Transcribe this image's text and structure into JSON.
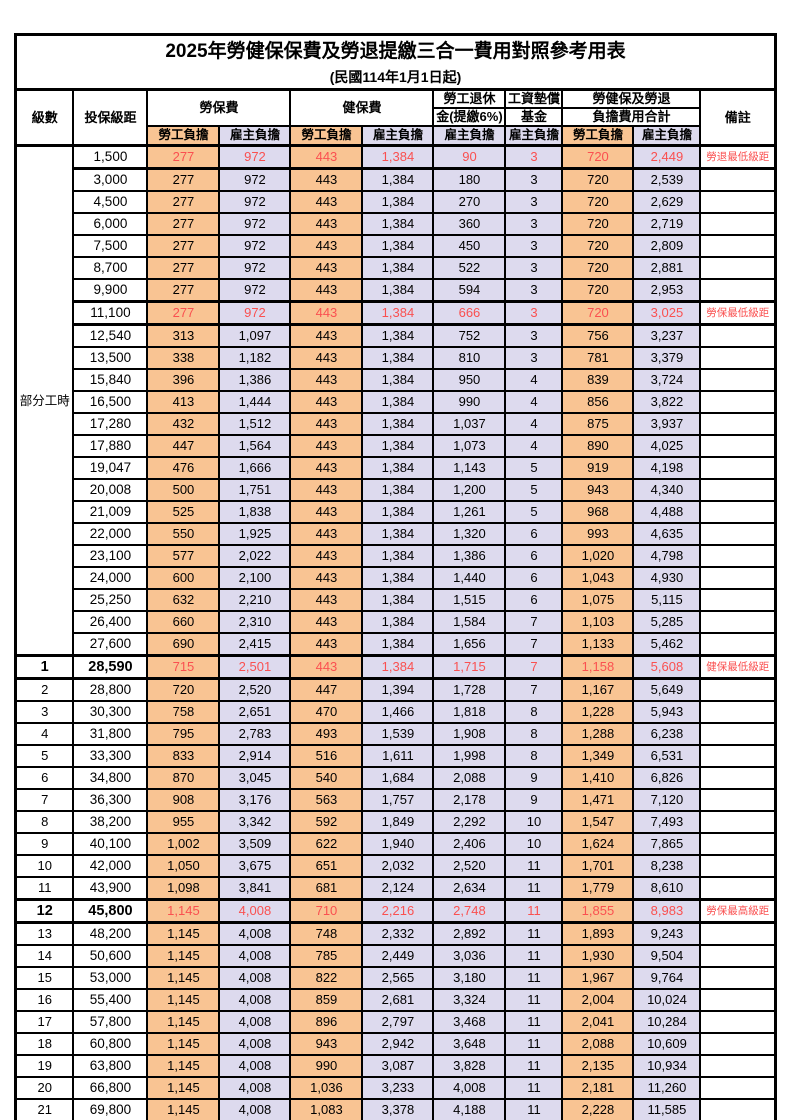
{
  "title": "2025年勞健保保費及勞退提繳三合一費用對照參考用表",
  "subtitle": "(民國114年1月1日起)",
  "colors": {
    "employee_cell_bg": "#F9C493",
    "employer_cell_bg": "#DDDAEE",
    "highlight_text": "#FA5050",
    "border": "#000000"
  },
  "header": {
    "level": "級數",
    "bracket": "投保級距",
    "labor_insurance": "勞保費",
    "health_insurance": "健保費",
    "pension_line1": "勞工退休",
    "pension_line2": "金(提繳6%)",
    "wage_fund_line1": "工資墊償",
    "wage_fund_line2": "基金",
    "total_line1": "勞健保及勞退",
    "total_line2": "負擔費用合計",
    "remark": "備註",
    "employee_burden": "勞工負擔",
    "employer_burden": "雇主負擔"
  },
  "part_time": {
    "label": "部分工時",
    "span": 23
  },
  "rows": [
    {
      "lv": "",
      "br": "1,500",
      "v": [
        "277",
        "972",
        "443",
        "1,384",
        "90",
        "3",
        "720",
        "2,449"
      ],
      "rm": "勞退最低級距",
      "hl": 1
    },
    {
      "lv": "",
      "br": "3,000",
      "v": [
        "277",
        "972",
        "443",
        "1,384",
        "180",
        "3",
        "720",
        "2,539"
      ],
      "rm": ""
    },
    {
      "lv": "",
      "br": "4,500",
      "v": [
        "277",
        "972",
        "443",
        "1,384",
        "270",
        "3",
        "720",
        "2,629"
      ],
      "rm": ""
    },
    {
      "lv": "",
      "br": "6,000",
      "v": [
        "277",
        "972",
        "443",
        "1,384",
        "360",
        "3",
        "720",
        "2,719"
      ],
      "rm": ""
    },
    {
      "lv": "",
      "br": "7,500",
      "v": [
        "277",
        "972",
        "443",
        "1,384",
        "450",
        "3",
        "720",
        "2,809"
      ],
      "rm": ""
    },
    {
      "lv": "",
      "br": "8,700",
      "v": [
        "277",
        "972",
        "443",
        "1,384",
        "522",
        "3",
        "720",
        "2,881"
      ],
      "rm": ""
    },
    {
      "lv": "",
      "br": "9,900",
      "v": [
        "277",
        "972",
        "443",
        "1,384",
        "594",
        "3",
        "720",
        "2,953"
      ],
      "rm": ""
    },
    {
      "lv": "",
      "br": "11,100",
      "v": [
        "277",
        "972",
        "443",
        "1,384",
        "666",
        "3",
        "720",
        "3,025"
      ],
      "rm": "勞保最低級距",
      "hl": 1
    },
    {
      "lv": "",
      "br": "12,540",
      "v": [
        "313",
        "1,097",
        "443",
        "1,384",
        "752",
        "3",
        "756",
        "3,237"
      ],
      "rm": ""
    },
    {
      "lv": "",
      "br": "13,500",
      "v": [
        "338",
        "1,182",
        "443",
        "1,384",
        "810",
        "3",
        "781",
        "3,379"
      ],
      "rm": ""
    },
    {
      "lv": "",
      "br": "15,840",
      "v": [
        "396",
        "1,386",
        "443",
        "1,384",
        "950",
        "4",
        "839",
        "3,724"
      ],
      "rm": ""
    },
    {
      "lv": "",
      "br": "16,500",
      "v": [
        "413",
        "1,444",
        "443",
        "1,384",
        "990",
        "4",
        "856",
        "3,822"
      ],
      "rm": ""
    },
    {
      "lv": "",
      "br": "17,280",
      "v": [
        "432",
        "1,512",
        "443",
        "1,384",
        "1,037",
        "4",
        "875",
        "3,937"
      ],
      "rm": ""
    },
    {
      "lv": "",
      "br": "17,880",
      "v": [
        "447",
        "1,564",
        "443",
        "1,384",
        "1,073",
        "4",
        "890",
        "4,025"
      ],
      "rm": ""
    },
    {
      "lv": "",
      "br": "19,047",
      "v": [
        "476",
        "1,666",
        "443",
        "1,384",
        "1,143",
        "5",
        "919",
        "4,198"
      ],
      "rm": ""
    },
    {
      "lv": "",
      "br": "20,008",
      "v": [
        "500",
        "1,751",
        "443",
        "1,384",
        "1,200",
        "5",
        "943",
        "4,340"
      ],
      "rm": ""
    },
    {
      "lv": "",
      "br": "21,009",
      "v": [
        "525",
        "1,838",
        "443",
        "1,384",
        "1,261",
        "5",
        "968",
        "4,488"
      ],
      "rm": ""
    },
    {
      "lv": "",
      "br": "22,000",
      "v": [
        "550",
        "1,925",
        "443",
        "1,384",
        "1,320",
        "6",
        "993",
        "4,635"
      ],
      "rm": ""
    },
    {
      "lv": "",
      "br": "23,100",
      "v": [
        "577",
        "2,022",
        "443",
        "1,384",
        "1,386",
        "6",
        "1,020",
        "4,798"
      ],
      "rm": ""
    },
    {
      "lv": "",
      "br": "24,000",
      "v": [
        "600",
        "2,100",
        "443",
        "1,384",
        "1,440",
        "6",
        "1,043",
        "4,930"
      ],
      "rm": ""
    },
    {
      "lv": "",
      "br": "25,250",
      "v": [
        "632",
        "2,210",
        "443",
        "1,384",
        "1,515",
        "6",
        "1,075",
        "5,115"
      ],
      "rm": ""
    },
    {
      "lv": "",
      "br": "26,400",
      "v": [
        "660",
        "2,310",
        "443",
        "1,384",
        "1,584",
        "7",
        "1,103",
        "5,285"
      ],
      "rm": ""
    },
    {
      "lv": "",
      "br": "27,600",
      "v": [
        "690",
        "2,415",
        "443",
        "1,384",
        "1,656",
        "7",
        "1,133",
        "5,462"
      ],
      "rm": ""
    },
    {
      "lv": "1",
      "br": "28,590",
      "v": [
        "715",
        "2,501",
        "443",
        "1,384",
        "1,715",
        "7",
        "1,158",
        "5,608"
      ],
      "rm": "健保最低級距",
      "hl": 1,
      "em": 1
    },
    {
      "lv": "2",
      "br": "28,800",
      "v": [
        "720",
        "2,520",
        "447",
        "1,394",
        "1,728",
        "7",
        "1,167",
        "5,649"
      ],
      "rm": ""
    },
    {
      "lv": "3",
      "br": "30,300",
      "v": [
        "758",
        "2,651",
        "470",
        "1,466",
        "1,818",
        "8",
        "1,228",
        "5,943"
      ],
      "rm": ""
    },
    {
      "lv": "4",
      "br": "31,800",
      "v": [
        "795",
        "2,783",
        "493",
        "1,539",
        "1,908",
        "8",
        "1,288",
        "6,238"
      ],
      "rm": ""
    },
    {
      "lv": "5",
      "br": "33,300",
      "v": [
        "833",
        "2,914",
        "516",
        "1,611",
        "1,998",
        "8",
        "1,349",
        "6,531"
      ],
      "rm": ""
    },
    {
      "lv": "6",
      "br": "34,800",
      "v": [
        "870",
        "3,045",
        "540",
        "1,684",
        "2,088",
        "9",
        "1,410",
        "6,826"
      ],
      "rm": ""
    },
    {
      "lv": "7",
      "br": "36,300",
      "v": [
        "908",
        "3,176",
        "563",
        "1,757",
        "2,178",
        "9",
        "1,471",
        "7,120"
      ],
      "rm": ""
    },
    {
      "lv": "8",
      "br": "38,200",
      "v": [
        "955",
        "3,342",
        "592",
        "1,849",
        "2,292",
        "10",
        "1,547",
        "7,493"
      ],
      "rm": ""
    },
    {
      "lv": "9",
      "br": "40,100",
      "v": [
        "1,002",
        "3,509",
        "622",
        "1,940",
        "2,406",
        "10",
        "1,624",
        "7,865"
      ],
      "rm": ""
    },
    {
      "lv": "10",
      "br": "42,000",
      "v": [
        "1,050",
        "3,675",
        "651",
        "2,032",
        "2,520",
        "11",
        "1,701",
        "8,238"
      ],
      "rm": ""
    },
    {
      "lv": "11",
      "br": "43,900",
      "v": [
        "1,098",
        "3,841",
        "681",
        "2,124",
        "2,634",
        "11",
        "1,779",
        "8,610"
      ],
      "rm": ""
    },
    {
      "lv": "12",
      "br": "45,800",
      "v": [
        "1,145",
        "4,008",
        "710",
        "2,216",
        "2,748",
        "11",
        "1,855",
        "8,983"
      ],
      "rm": "勞保最高級距",
      "hl": 1,
      "em": 1
    },
    {
      "lv": "13",
      "br": "48,200",
      "v": [
        "1,145",
        "4,008",
        "748",
        "2,332",
        "2,892",
        "11",
        "1,893",
        "9,243"
      ],
      "rm": ""
    },
    {
      "lv": "14",
      "br": "50,600",
      "v": [
        "1,145",
        "4,008",
        "785",
        "2,449",
        "3,036",
        "11",
        "1,930",
        "9,504"
      ],
      "rm": ""
    },
    {
      "lv": "15",
      "br": "53,000",
      "v": [
        "1,145",
        "4,008",
        "822",
        "2,565",
        "3,180",
        "11",
        "1,967",
        "9,764"
      ],
      "rm": ""
    },
    {
      "lv": "16",
      "br": "55,400",
      "v": [
        "1,145",
        "4,008",
        "859",
        "2,681",
        "3,324",
        "11",
        "2,004",
        "10,024"
      ],
      "rm": ""
    },
    {
      "lv": "17",
      "br": "57,800",
      "v": [
        "1,145",
        "4,008",
        "896",
        "2,797",
        "3,468",
        "11",
        "2,041",
        "10,284"
      ],
      "rm": ""
    },
    {
      "lv": "18",
      "br": "60,800",
      "v": [
        "1,145",
        "4,008",
        "943",
        "2,942",
        "3,648",
        "11",
        "2,088",
        "10,609"
      ],
      "rm": ""
    },
    {
      "lv": "19",
      "br": "63,800",
      "v": [
        "1,145",
        "4,008",
        "990",
        "3,087",
        "3,828",
        "11",
        "2,135",
        "10,934"
      ],
      "rm": ""
    },
    {
      "lv": "20",
      "br": "66,800",
      "v": [
        "1,145",
        "4,008",
        "1,036",
        "3,233",
        "4,008",
        "11",
        "2,181",
        "11,260"
      ],
      "rm": ""
    },
    {
      "lv": "21",
      "br": "69,800",
      "v": [
        "1,145",
        "4,008",
        "1,083",
        "3,378",
        "4,188",
        "11",
        "2,228",
        "11,585"
      ],
      "rm": ""
    }
  ]
}
